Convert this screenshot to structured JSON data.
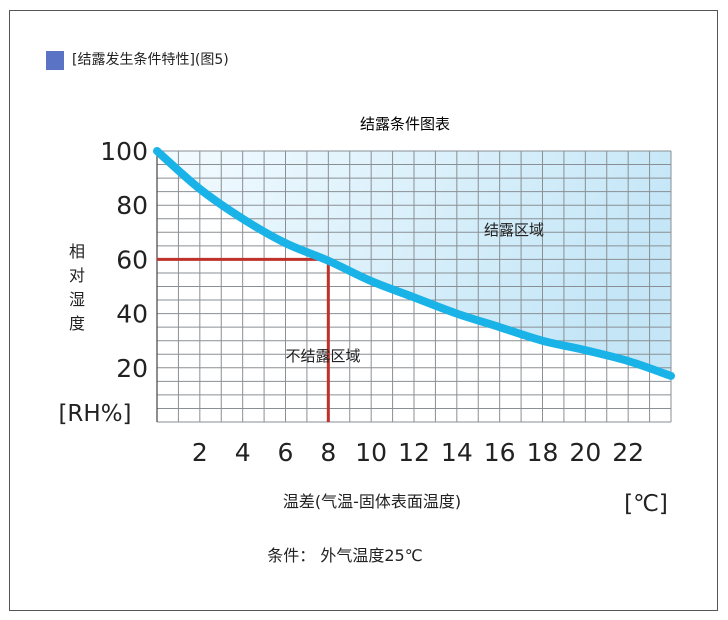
{
  "header": {
    "heading": "[结露发生条件特性](图5)",
    "accent_color": "#5b73c4"
  },
  "chart_data": {
    "type": "line",
    "title": "结露条件图表",
    "xlabel": "温差(气温-固体表面温度)",
    "x_unit": "[℃]",
    "ylabel": "相对湿度",
    "y_unit": "[RH%]",
    "xlim": [
      0,
      24
    ],
    "ylim": [
      0,
      100
    ],
    "x_ticks": [
      2,
      4,
      6,
      8,
      10,
      12,
      14,
      16,
      18,
      20,
      22
    ],
    "y_ticks": [
      20,
      40,
      60,
      80,
      100
    ],
    "grid": true,
    "series": [
      {
        "points": [
          [
            0,
            100
          ],
          [
            2,
            86
          ],
          [
            4,
            75
          ],
          [
            6,
            66
          ],
          [
            8,
            59.5
          ],
          [
            10,
            52
          ],
          [
            12,
            46
          ],
          [
            14,
            40
          ],
          [
            16,
            35
          ],
          [
            18,
            30
          ],
          [
            20,
            26.5
          ],
          [
            22,
            22.5
          ],
          [
            24,
            17
          ]
        ],
        "color": "#1ab3e8"
      }
    ],
    "reference": {
      "x": 8,
      "y": 60,
      "color": "#c0312b"
    },
    "annotations": {
      "above": "结露区域",
      "below": "不结露区域"
    }
  },
  "footer": {
    "condition": "条件：  外气温度25℃"
  }
}
